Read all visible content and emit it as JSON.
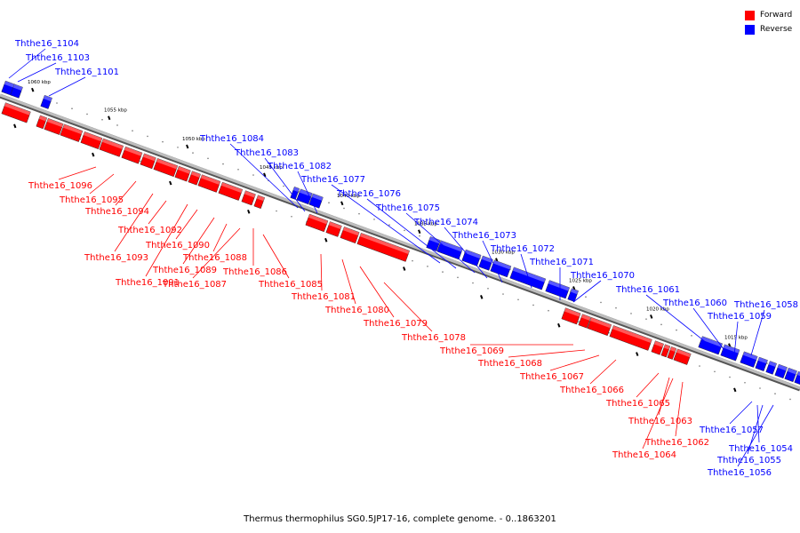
{
  "colors": {
    "forward": "#ff0000",
    "reverse": "#0000ff",
    "axis": "#999999"
  },
  "legend": [
    {
      "label": "Forward",
      "color": "#ff0000"
    },
    {
      "label": "Reverse",
      "color": "#0000ff"
    }
  ],
  "caption": "Thermus thermophilus SG0.5JP17-16, complete genome. - 0..1863201",
  "ticks": [
    "1060 kbp",
    "1055 kbp",
    "1050 kbp",
    "1045 kbp",
    "1040 kbp",
    "1035 kbp",
    "1030 kbp",
    "1025 kbp",
    "1020 kbp",
    "1015 kbp"
  ],
  "genes": [
    {
      "name": "Ththe16_1104",
      "strand": "reverse"
    },
    {
      "name": "Ththe16_1103",
      "strand": "reverse"
    },
    {
      "name": "Ththe16_1101",
      "strand": "reverse"
    },
    {
      "name": "Ththe16_1096",
      "strand": "forward"
    },
    {
      "name": "Ththe16_1095",
      "strand": "forward"
    },
    {
      "name": "Ththe16_1094",
      "strand": "forward"
    },
    {
      "name": "Ththe16_1093",
      "strand": "forward"
    },
    {
      "name": "Ththe16_1092",
      "strand": "forward"
    },
    {
      "name": "Ththe16_1091",
      "strand": "forward"
    },
    {
      "name": "Ththe16_1090",
      "strand": "forward"
    },
    {
      "name": "Ththe16_1089",
      "strand": "forward"
    },
    {
      "name": "Ththe16_1088",
      "strand": "forward"
    },
    {
      "name": "Ththe16_1087",
      "strand": "forward"
    },
    {
      "name": "Ththe16_1086",
      "strand": "forward"
    },
    {
      "name": "Ththe16_1085",
      "strand": "forward"
    },
    {
      "name": "Ththe16_1084",
      "strand": "reverse"
    },
    {
      "name": "Ththe16_1083",
      "strand": "reverse"
    },
    {
      "name": "Ththe16_1082",
      "strand": "reverse"
    },
    {
      "name": "Ththe16_1081",
      "strand": "forward"
    },
    {
      "name": "Ththe16_1080",
      "strand": "forward"
    },
    {
      "name": "Ththe16_1079",
      "strand": "forward"
    },
    {
      "name": "Ththe16_1078",
      "strand": "forward"
    },
    {
      "name": "Ththe16_1077",
      "strand": "reverse"
    },
    {
      "name": "Ththe16_1076",
      "strand": "reverse"
    },
    {
      "name": "Ththe16_1075",
      "strand": "reverse"
    },
    {
      "name": "Ththe16_1074",
      "strand": "reverse"
    },
    {
      "name": "Ththe16_1073",
      "strand": "reverse"
    },
    {
      "name": "Ththe16_1072",
      "strand": "reverse"
    },
    {
      "name": "Ththe16_1071",
      "strand": "reverse"
    },
    {
      "name": "Ththe16_1070",
      "strand": "reverse"
    },
    {
      "name": "Ththe16_1069",
      "strand": "forward"
    },
    {
      "name": "Ththe16_1068",
      "strand": "forward"
    },
    {
      "name": "Ththe16_1067",
      "strand": "forward"
    },
    {
      "name": "Ththe16_1066",
      "strand": "forward"
    },
    {
      "name": "Ththe16_1065",
      "strand": "forward"
    },
    {
      "name": "Ththe16_1064",
      "strand": "forward"
    },
    {
      "name": "Ththe16_1063",
      "strand": "forward"
    },
    {
      "name": "Ththe16_1062",
      "strand": "forward"
    },
    {
      "name": "Ththe16_1061",
      "strand": "reverse"
    },
    {
      "name": "Ththe16_1060",
      "strand": "reverse"
    },
    {
      "name": "Ththe16_1059",
      "strand": "reverse"
    },
    {
      "name": "Ththe16_1058",
      "strand": "reverse"
    },
    {
      "name": "Ththe16_1057",
      "strand": "reverse"
    },
    {
      "name": "Ththe16_1056",
      "strand": "reverse"
    },
    {
      "name": "Ththe16_1055",
      "strand": "reverse"
    },
    {
      "name": "Ththe16_1054",
      "strand": "reverse"
    }
  ]
}
